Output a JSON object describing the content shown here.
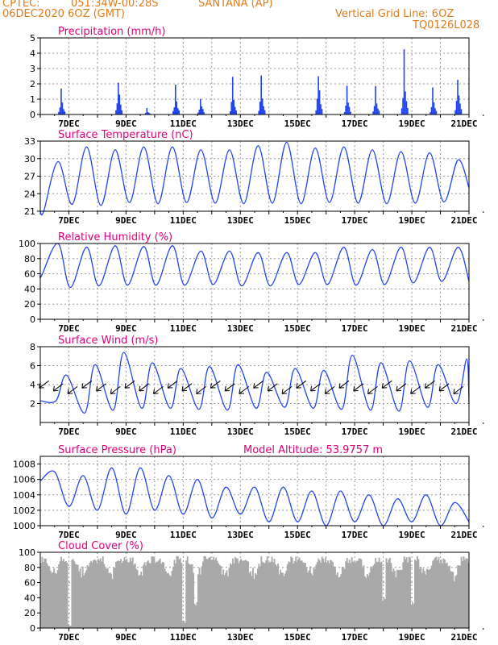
{
  "header": {
    "agency": "CPTEC:",
    "coords": "051:34W-00:28S",
    "station": "SANTANA (AP)",
    "run": "06DEC2020 6OZ (GMT)",
    "grid_note": "Vertical Grid Line: 6OZ",
    "code": "TQ0126L028"
  },
  "colors": {
    "header": "#e07b1a",
    "title": "#e0007a",
    "series": "#2244ee",
    "cloud": "#a9a9a9",
    "grid": "#999999"
  },
  "x_axis": {
    "tick_labels": [
      "7DEC",
      "9DEC",
      "11DEC",
      "13DEC",
      "15DEC",
      "17DEC",
      "19DEC",
      "21DEC"
    ],
    "start": "06DEC2020 06Z",
    "end": "21DEC2020 06Z",
    "vertical_grid": "06Z daily"
  },
  "chart_data": [
    {
      "type": "bar",
      "title": "Precipitation  (mm/h)",
      "ylim": [
        0,
        5
      ],
      "yticks": [
        0,
        1,
        2,
        3,
        4,
        5
      ],
      "grid": true,
      "series": [
        {
          "events": [
            {
              "day": 0.7,
              "peak": 1.7
            },
            {
              "day": 2.7,
              "peak": 2.5
            },
            {
              "day": 3.7,
              "peak": 0.4
            },
            {
              "day": 4.7,
              "peak": 1.9
            },
            {
              "day": 5.6,
              "peak": 1.2
            },
            {
              "day": 6.7,
              "peak": 2.3
            },
            {
              "day": 7.7,
              "peak": 2.5
            },
            {
              "day": 9.7,
              "peak": 3.0
            },
            {
              "day": 10.7,
              "peak": 1.8
            },
            {
              "day": 11.7,
              "peak": 1.9
            },
            {
              "day": 12.7,
              "peak": 3.6
            },
            {
              "day": 13.7,
              "peak": 1.8
            },
            {
              "day": 14.6,
              "peak": 2.5
            }
          ]
        }
      ]
    },
    {
      "type": "line",
      "title": "Surface Temperature  (nC)",
      "ylim": [
        21,
        33
      ],
      "yticks": [
        21,
        24,
        27,
        30,
        33
      ],
      "grid": true,
      "series": [
        {
          "min": [
            21.0,
            22.2,
            22.0,
            22.5,
            22.3,
            22.5,
            22.4,
            22.3,
            22.4,
            22.3,
            22.5,
            22.4,
            22.3,
            22.4,
            22.6,
            25.0
          ],
          "max": [
            29.5,
            32.0,
            31.5,
            32.0,
            32.0,
            31.5,
            31.5,
            32.2,
            32.8,
            31.8,
            32.0,
            31.5,
            31.2,
            31.0,
            29.8
          ]
        }
      ]
    },
    {
      "type": "line",
      "title": "Relative Humidity  (%)",
      "ylim": [
        0,
        100
      ],
      "yticks": [
        0,
        20,
        40,
        60,
        80,
        100
      ],
      "grid": true,
      "series": [
        {
          "max": [
            100,
            95,
            97,
            96,
            97,
            90,
            90,
            88,
            88,
            88,
            95,
            92,
            95,
            95,
            95,
            85
          ],
          "min": [
            58,
            42,
            44,
            45,
            45,
            45,
            46,
            44,
            44,
            46,
            46,
            45,
            46,
            48,
            50
          ]
        }
      ]
    },
    {
      "type": "line",
      "title": "Surface Wind  (m/s)",
      "ylim": [
        0,
        8
      ],
      "yticks": [
        2,
        4,
        6,
        8
      ],
      "grid": true,
      "series": [
        {
          "max": [
            5.0,
            6.1,
            7.4,
            6.3,
            5.7,
            5.9,
            6.1,
            5.3,
            5.7,
            5.5,
            7.1,
            6.3,
            6.5,
            6.1,
            6.7,
            4.8
          ],
          "min": [
            2.3,
            1.0,
            1.3,
            1.5,
            1.5,
            1.4,
            1.3,
            1.5,
            1.6,
            1.5,
            1.4,
            1.3,
            1.2,
            1.6,
            2.0
          ]
        }
      ],
      "wind_direction": "from NE"
    },
    {
      "type": "line",
      "title": "Surface Pressure  (hPa)",
      "annotation": "Model Altitude: 53.9757  m",
      "ylim": [
        1000,
        1009
      ],
      "yticks": [
        1000,
        1002,
        1004,
        1006,
        1008
      ],
      "grid": true,
      "series": [
        {
          "values": [
            1005.8,
            1007.0,
            1002.5,
            1006.5,
            1002.0,
            1007.5,
            1001.5,
            1007.5,
            1002.0,
            1006.5,
            1001.5,
            1006.0,
            1001.0,
            1005.0,
            1001.5,
            1005.0,
            1000.5,
            1005.0,
            1000.5,
            1004.5,
            1000.0,
            1004.5,
            1000.5,
            1004.0,
            1000.0,
            1003.5,
            1000.5,
            1004.0,
            1000.0,
            1003.0,
            1000.5
          ]
        }
      ]
    },
    {
      "type": "area",
      "title": "Cloud Cover  (%)",
      "ylim": [
        0,
        100
      ],
      "yticks": [
        0,
        20,
        40,
        60,
        80,
        100
      ],
      "grid": true,
      "series": [
        {
          "typical": 95,
          "dips": [
            {
              "day": 1.0,
              "min": 2
            },
            {
              "day": 5.0,
              "min": 5
            },
            {
              "day": 5.4,
              "min": 30
            },
            {
              "day": 12.0,
              "min": 35
            },
            {
              "day": 13.0,
              "min": 30
            }
          ]
        }
      ]
    }
  ]
}
